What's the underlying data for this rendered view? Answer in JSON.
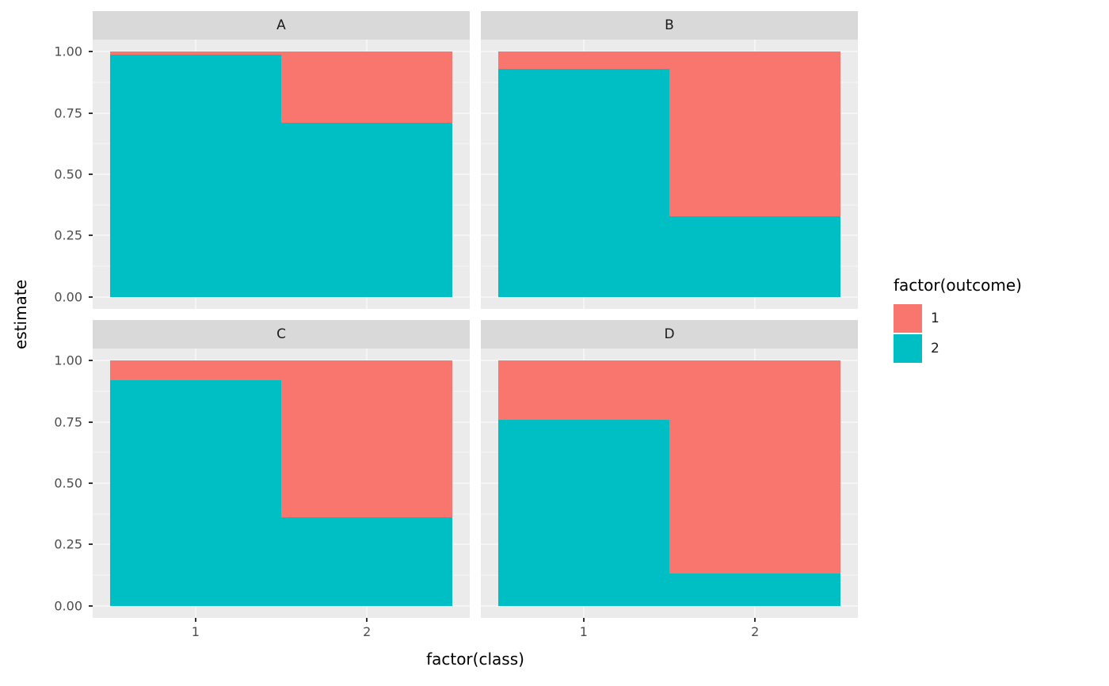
{
  "chart_data": {
    "type": "bar",
    "variant": "stacked-proportion-faceted",
    "title": "",
    "xlabel": "factor(class)",
    "ylabel": "estimate",
    "ylim": [
      0,
      1
    ],
    "x_categories": [
      "1",
      "2"
    ],
    "y_major_ticks": [
      {
        "label": "1.00",
        "value": 1.0
      },
      {
        "label": "0.75",
        "value": 0.75
      },
      {
        "label": "0.50",
        "value": 0.5
      },
      {
        "label": "0.25",
        "value": 0.25
      },
      {
        "label": "0.00",
        "value": 0.0
      }
    ],
    "y_minor_ticks": [
      0.125,
      0.375,
      0.625,
      0.875
    ],
    "grid": true,
    "legend": {
      "title": "factor(outcome)",
      "position": "right",
      "entries": [
        {
          "label": "1",
          "color": "#F8766D"
        },
        {
          "label": "2",
          "color": "#00BFC4"
        }
      ]
    },
    "facets": [
      {
        "name": "A",
        "series": [
          {
            "name": "1",
            "color": "#F8766D",
            "values": [
              0.01,
              0.29
            ]
          },
          {
            "name": "2",
            "color": "#00BFC4",
            "values": [
              0.99,
              0.71
            ]
          }
        ]
      },
      {
        "name": "B",
        "series": [
          {
            "name": "1",
            "color": "#F8766D",
            "values": [
              0.07,
              0.67
            ]
          },
          {
            "name": "2",
            "color": "#00BFC4",
            "values": [
              0.93,
              0.33
            ]
          }
        ]
      },
      {
        "name": "C",
        "series": [
          {
            "name": "1",
            "color": "#F8766D",
            "values": [
              0.08,
              0.64
            ]
          },
          {
            "name": "2",
            "color": "#00BFC4",
            "values": [
              0.92,
              0.36
            ]
          }
        ]
      },
      {
        "name": "D",
        "series": [
          {
            "name": "1",
            "color": "#F8766D",
            "values": [
              0.24,
              0.87
            ]
          },
          {
            "name": "2",
            "color": "#00BFC4",
            "values": [
              0.76,
              0.13
            ]
          }
        ]
      }
    ]
  },
  "colors": {
    "panel_bg": "#EBEBEB",
    "strip_bg": "#D9D9D9",
    "grid_line": "#FFFFFF",
    "tick_mark": "#333333",
    "tick_text": "#4D4D4D",
    "title_text": "#000000"
  }
}
